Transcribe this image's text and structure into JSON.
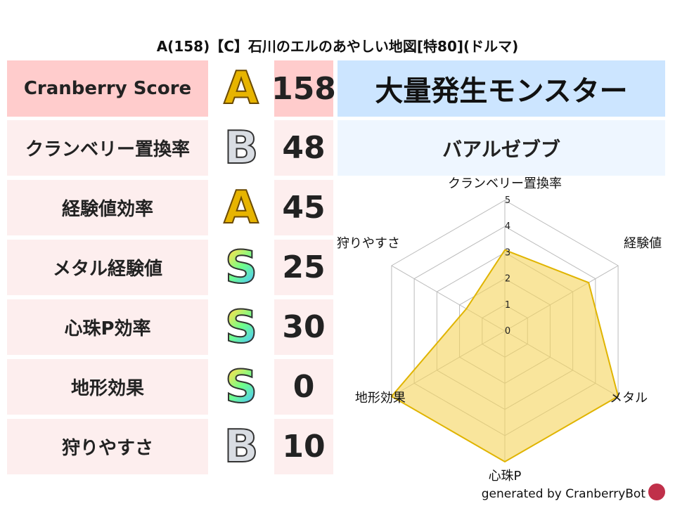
{
  "title": "A(158)【C】石川のエルのあやしい地図[特80](ドルマ)",
  "score": {
    "label": "Cranberry Score",
    "grade": "A",
    "value": "158"
  },
  "rows": [
    {
      "label": "クランベリー置換率",
      "grade": "B",
      "value": "48"
    },
    {
      "label": "経験値効率",
      "grade": "A",
      "value": "45"
    },
    {
      "label": "メタル経験値",
      "grade": "S",
      "value": "25"
    },
    {
      "label": "心珠P効率",
      "grade": "S",
      "value": "30"
    },
    {
      "label": "地形効果",
      "grade": "S",
      "value": "0"
    },
    {
      "label": "狩りやすさ",
      "grade": "B",
      "value": "10"
    }
  ],
  "monster": {
    "header": "大量発生モンスター",
    "name": "バアルゼブブ"
  },
  "footer": "generated by CranberryBot",
  "chart_data": {
    "type": "radar",
    "categories": [
      "クランベリー置換率",
      "経験値",
      "メタル",
      "心珠P",
      "地形効果",
      "狩りやすさ"
    ],
    "values": [
      3.1,
      3.7,
      5,
      5,
      5,
      1.7
    ],
    "rlim": [
      0,
      5
    ],
    "ticks": [
      "0",
      "1",
      "2",
      "3",
      "4",
      "5"
    ],
    "fill_color": "#f5d35a",
    "line_color": "#e0b400",
    "grid": true
  }
}
